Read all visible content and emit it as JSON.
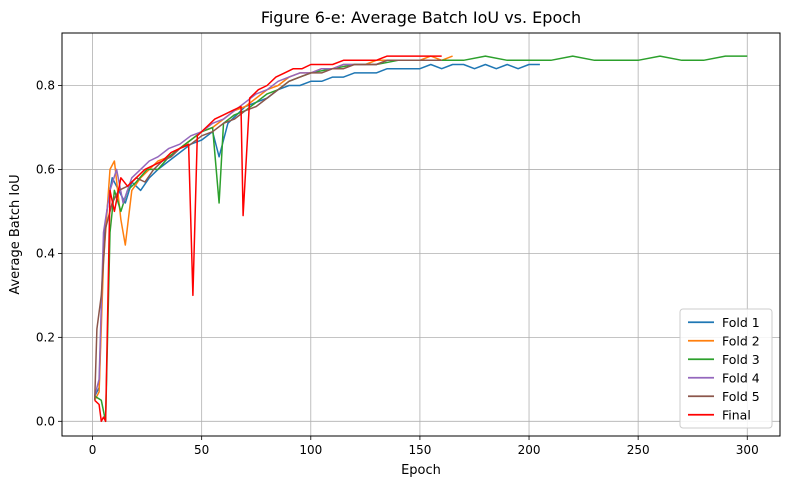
{
  "chart_data": {
    "type": "line",
    "title": "Figure 6-e: Average Batch IoU vs. Epoch",
    "xlabel": "Epoch",
    "ylabel": "Average Batch IoU",
    "xlim": [
      -14,
      315
    ],
    "ylim": [
      -0.035,
      0.925
    ],
    "xticks": [
      0,
      50,
      100,
      150,
      200,
      250,
      300
    ],
    "xtick_labels": [
      "0",
      "50",
      "100",
      "150",
      "200",
      "250",
      "300"
    ],
    "yticks": [
      0.0,
      0.2,
      0.4,
      0.6,
      0.8
    ],
    "ytick_labels": [
      "0.0",
      "0.2",
      "0.4",
      "0.6",
      "0.8"
    ],
    "grid": true,
    "legend_position": "lower-right",
    "series": [
      {
        "name": "Fold 1",
        "color": "#1f77b4",
        "points": [
          [
            1,
            0.06
          ],
          [
            3,
            0.08
          ],
          [
            5,
            0.42
          ],
          [
            7,
            0.52
          ],
          [
            9,
            0.58
          ],
          [
            12,
            0.55
          ],
          [
            15,
            0.52
          ],
          [
            18,
            0.57
          ],
          [
            22,
            0.55
          ],
          [
            26,
            0.58
          ],
          [
            30,
            0.6
          ],
          [
            35,
            0.62
          ],
          [
            40,
            0.64
          ],
          [
            45,
            0.66
          ],
          [
            50,
            0.67
          ],
          [
            55,
            0.69
          ],
          [
            58,
            0.63
          ],
          [
            62,
            0.71
          ],
          [
            66,
            0.73
          ],
          [
            70,
            0.75
          ],
          [
            75,
            0.76
          ],
          [
            80,
            0.77
          ],
          [
            85,
            0.79
          ],
          [
            90,
            0.8
          ],
          [
            95,
            0.8
          ],
          [
            100,
            0.81
          ],
          [
            105,
            0.81
          ],
          [
            110,
            0.82
          ],
          [
            115,
            0.82
          ],
          [
            120,
            0.83
          ],
          [
            125,
            0.83
          ],
          [
            130,
            0.83
          ],
          [
            135,
            0.84
          ],
          [
            140,
            0.84
          ],
          [
            145,
            0.84
          ],
          [
            150,
            0.84
          ],
          [
            155,
            0.85
          ],
          [
            160,
            0.84
          ],
          [
            165,
            0.85
          ],
          [
            170,
            0.85
          ],
          [
            175,
            0.84
          ],
          [
            180,
            0.85
          ],
          [
            185,
            0.84
          ],
          [
            190,
            0.85
          ],
          [
            195,
            0.84
          ],
          [
            200,
            0.85
          ],
          [
            205,
            0.85
          ]
        ]
      },
      {
        "name": "Fold 2",
        "color": "#ff7f0e",
        "points": [
          [
            1,
            0.05
          ],
          [
            3,
            0.07
          ],
          [
            5,
            0.38
          ],
          [
            8,
            0.6
          ],
          [
            10,
            0.62
          ],
          [
            13,
            0.48
          ],
          [
            15,
            0.42
          ],
          [
            18,
            0.55
          ],
          [
            22,
            0.58
          ],
          [
            26,
            0.6
          ],
          [
            30,
            0.62
          ],
          [
            35,
            0.63
          ],
          [
            40,
            0.65
          ],
          [
            45,
            0.67
          ],
          [
            50,
            0.69
          ],
          [
            55,
            0.7
          ],
          [
            60,
            0.72
          ],
          [
            65,
            0.74
          ],
          [
            70,
            0.75
          ],
          [
            75,
            0.77
          ],
          [
            80,
            0.79
          ],
          [
            85,
            0.8
          ],
          [
            90,
            0.82
          ],
          [
            95,
            0.83
          ],
          [
            100,
            0.83
          ],
          [
            105,
            0.84
          ],
          [
            110,
            0.84
          ],
          [
            115,
            0.85
          ],
          [
            120,
            0.85
          ],
          [
            125,
            0.85
          ],
          [
            130,
            0.86
          ],
          [
            135,
            0.86
          ],
          [
            140,
            0.86
          ],
          [
            145,
            0.86
          ],
          [
            150,
            0.86
          ],
          [
            155,
            0.87
          ],
          [
            160,
            0.86
          ],
          [
            165,
            0.87
          ]
        ]
      },
      {
        "name": "Fold 3",
        "color": "#2ca02c",
        "points": [
          [
            1,
            0.06
          ],
          [
            4,
            0.05
          ],
          [
            6,
            0.0
          ],
          [
            8,
            0.45
          ],
          [
            10,
            0.55
          ],
          [
            13,
            0.5
          ],
          [
            16,
            0.55
          ],
          [
            20,
            0.57
          ],
          [
            25,
            0.6
          ],
          [
            30,
            0.6
          ],
          [
            35,
            0.63
          ],
          [
            40,
            0.65
          ],
          [
            45,
            0.67
          ],
          [
            50,
            0.69
          ],
          [
            55,
            0.7
          ],
          [
            58,
            0.52
          ],
          [
            60,
            0.71
          ],
          [
            65,
            0.73
          ],
          [
            70,
            0.74
          ],
          [
            75,
            0.76
          ],
          [
            80,
            0.78
          ],
          [
            85,
            0.79
          ],
          [
            90,
            0.81
          ],
          [
            95,
            0.82
          ],
          [
            100,
            0.83
          ],
          [
            110,
            0.84
          ],
          [
            120,
            0.85
          ],
          [
            130,
            0.85
          ],
          [
            140,
            0.86
          ],
          [
            150,
            0.86
          ],
          [
            160,
            0.86
          ],
          [
            170,
            0.86
          ],
          [
            180,
            0.87
          ],
          [
            190,
            0.86
          ],
          [
            200,
            0.86
          ],
          [
            210,
            0.86
          ],
          [
            220,
            0.87
          ],
          [
            230,
            0.86
          ],
          [
            240,
            0.86
          ],
          [
            250,
            0.86
          ],
          [
            260,
            0.87
          ],
          [
            270,
            0.86
          ],
          [
            280,
            0.86
          ],
          [
            290,
            0.87
          ],
          [
            300,
            0.87
          ]
        ]
      },
      {
        "name": "Fold 4",
        "color": "#9467bd",
        "points": [
          [
            1,
            0.06
          ],
          [
            3,
            0.1
          ],
          [
            5,
            0.45
          ],
          [
            8,
            0.55
          ],
          [
            11,
            0.6
          ],
          [
            14,
            0.52
          ],
          [
            18,
            0.58
          ],
          [
            22,
            0.6
          ],
          [
            26,
            0.62
          ],
          [
            30,
            0.63
          ],
          [
            35,
            0.65
          ],
          [
            40,
            0.66
          ],
          [
            45,
            0.68
          ],
          [
            50,
            0.69
          ],
          [
            55,
            0.71
          ],
          [
            60,
            0.72
          ],
          [
            65,
            0.74
          ],
          [
            70,
            0.76
          ],
          [
            75,
            0.78
          ],
          [
            80,
            0.79
          ],
          [
            85,
            0.81
          ],
          [
            90,
            0.82
          ],
          [
            95,
            0.83
          ],
          [
            100,
            0.83
          ],
          [
            105,
            0.84
          ],
          [
            110,
            0.84
          ],
          [
            115,
            0.85
          ],
          [
            120,
            0.85
          ],
          [
            125,
            0.85
          ],
          [
            130,
            0.85
          ],
          [
            135,
            0.86
          ],
          [
            140,
            0.86
          ],
          [
            145,
            0.86
          ],
          [
            150,
            0.86
          ],
          [
            155,
            0.86
          ],
          [
            160,
            0.86
          ]
        ]
      },
      {
        "name": "Fold 5",
        "color": "#8c564b",
        "points": [
          [
            1,
            0.05
          ],
          [
            2,
            0.22
          ],
          [
            4,
            0.3
          ],
          [
            6,
            0.46
          ],
          [
            9,
            0.52
          ],
          [
            12,
            0.55
          ],
          [
            16,
            0.56
          ],
          [
            20,
            0.58
          ],
          [
            24,
            0.57
          ],
          [
            28,
            0.6
          ],
          [
            32,
            0.62
          ],
          [
            36,
            0.63
          ],
          [
            40,
            0.65
          ],
          [
            45,
            0.66
          ],
          [
            50,
            0.68
          ],
          [
            55,
            0.69
          ],
          [
            60,
            0.71
          ],
          [
            65,
            0.72
          ],
          [
            70,
            0.74
          ],
          [
            75,
            0.75
          ],
          [
            80,
            0.77
          ],
          [
            85,
            0.79
          ],
          [
            90,
            0.81
          ],
          [
            95,
            0.82
          ],
          [
            100,
            0.83
          ],
          [
            105,
            0.83
          ],
          [
            110,
            0.84
          ],
          [
            115,
            0.84
          ],
          [
            120,
            0.85
          ],
          [
            125,
            0.85
          ],
          [
            130,
            0.85
          ],
          [
            135,
            0.86
          ],
          [
            140,
            0.86
          ],
          [
            145,
            0.86
          ],
          [
            150,
            0.86
          ],
          [
            155,
            0.86
          ],
          [
            160,
            0.86
          ]
        ]
      },
      {
        "name": "Final",
        "color": "#ff0000",
        "points": [
          [
            1,
            0.05
          ],
          [
            3,
            0.04
          ],
          [
            4,
            0.0
          ],
          [
            5,
            0.01
          ],
          [
            6,
            0.0
          ],
          [
            8,
            0.55
          ],
          [
            10,
            0.5
          ],
          [
            13,
            0.58
          ],
          [
            16,
            0.56
          ],
          [
            20,
            0.58
          ],
          [
            24,
            0.6
          ],
          [
            28,
            0.61
          ],
          [
            32,
            0.62
          ],
          [
            36,
            0.64
          ],
          [
            40,
            0.65
          ],
          [
            44,
            0.66
          ],
          [
            46,
            0.3
          ],
          [
            48,
            0.68
          ],
          [
            52,
            0.7
          ],
          [
            56,
            0.72
          ],
          [
            60,
            0.73
          ],
          [
            64,
            0.74
          ],
          [
            68,
            0.75
          ],
          [
            69,
            0.49
          ],
          [
            72,
            0.77
          ],
          [
            76,
            0.79
          ],
          [
            80,
            0.8
          ],
          [
            84,
            0.82
          ],
          [
            88,
            0.83
          ],
          [
            92,
            0.84
          ],
          [
            96,
            0.84
          ],
          [
            100,
            0.85
          ],
          [
            105,
            0.85
          ],
          [
            110,
            0.85
          ],
          [
            115,
            0.86
          ],
          [
            120,
            0.86
          ],
          [
            125,
            0.86
          ],
          [
            130,
            0.86
          ],
          [
            135,
            0.87
          ],
          [
            140,
            0.87
          ],
          [
            145,
            0.87
          ],
          [
            150,
            0.87
          ],
          [
            155,
            0.87
          ],
          [
            160,
            0.87
          ]
        ]
      }
    ]
  }
}
